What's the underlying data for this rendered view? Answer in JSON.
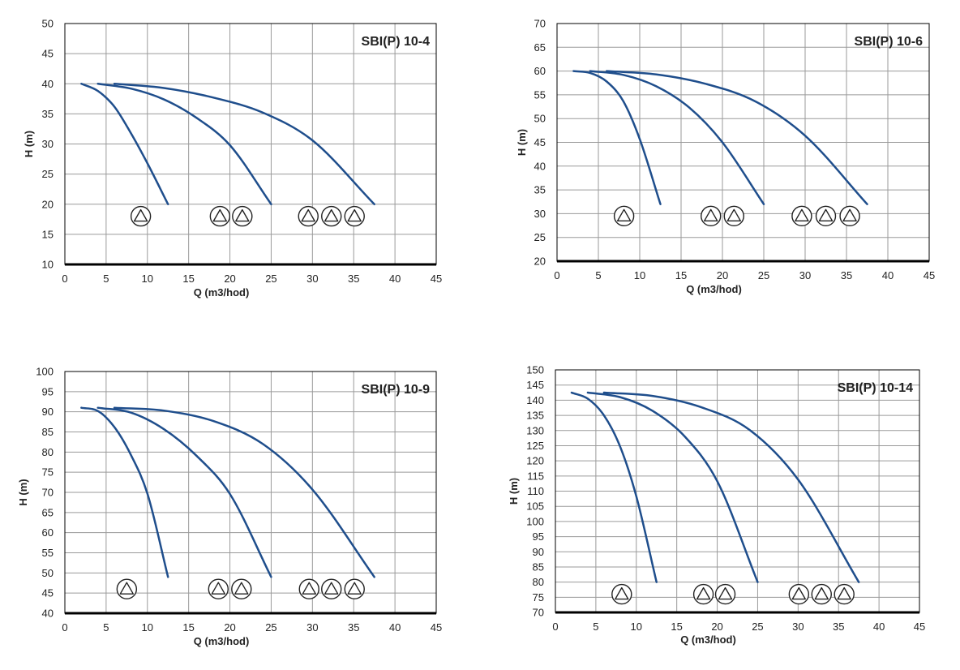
{
  "colors": {
    "curve": "#1f4e8c",
    "grid": "#9a9a9a",
    "axis": "#000000"
  },
  "icon": "pump-triangle-icon",
  "chart_data": [
    {
      "type": "line",
      "title": "SBI(P) 10-4",
      "xlabel": "Q (m3/hod)",
      "ylabel": "H (m)",
      "xlim": [
        0,
        45
      ],
      "ylim": [
        10,
        50
      ],
      "xticks": [
        "0",
        "5",
        "10",
        "15",
        "20",
        "25",
        "30",
        "35",
        "40",
        "45"
      ],
      "yticks": [
        "10",
        "15",
        "20",
        "25",
        "30",
        "35",
        "40",
        "45",
        "50"
      ],
      "grid": true,
      "series": [
        {
          "pumps": 1,
          "x": [
            2,
            4,
            6,
            8,
            10,
            12.5
          ],
          "y": [
            40,
            38.8,
            36.2,
            31.8,
            26.8,
            20
          ]
        },
        {
          "pumps": 2,
          "x": [
            4,
            8,
            12,
            16,
            20,
            25
          ],
          "y": [
            40,
            39.2,
            37.4,
            34.3,
            29.8,
            20
          ]
        },
        {
          "pumps": 3,
          "x": [
            6,
            12,
            18,
            24,
            30,
            37.5
          ],
          "y": [
            40,
            39.3,
            37.7,
            35.2,
            30.6,
            20
          ]
        }
      ],
      "pump_markers": [
        {
          "x": 9.2,
          "y": 18
        },
        {
          "x": 18.8,
          "y": 18
        },
        {
          "x": 21.5,
          "y": 18
        },
        {
          "x": 29.5,
          "y": 18
        },
        {
          "x": 32.3,
          "y": 18
        },
        {
          "x": 35.1,
          "y": 18
        }
      ]
    },
    {
      "type": "line",
      "title": "SBI(P) 10-6",
      "xlabel": "Q (m3/hod)",
      "ylabel": "H (m)",
      "xlim": [
        0,
        45
      ],
      "ylim": [
        20,
        70
      ],
      "xticks": [
        "0",
        "5",
        "10",
        "15",
        "20",
        "25",
        "30",
        "35",
        "40",
        "45"
      ],
      "yticks": [
        "20",
        "25",
        "30",
        "35",
        "40",
        "45",
        "50",
        "55",
        "60",
        "65",
        "70"
      ],
      "grid": true,
      "series": [
        {
          "pumps": 1,
          "x": [
            2,
            4,
            6,
            8,
            10,
            12.5
          ],
          "y": [
            60,
            59.6,
            57.8,
            53.7,
            45.7,
            32
          ]
        },
        {
          "pumps": 2,
          "x": [
            4,
            8,
            12,
            16,
            20,
            25
          ],
          "y": [
            60,
            59.2,
            56.8,
            52.3,
            45,
            32
          ]
        },
        {
          "pumps": 3,
          "x": [
            6,
            12,
            18,
            24,
            30,
            37.5
          ],
          "y": [
            60,
            59.3,
            57.3,
            53.6,
            46.4,
            32
          ]
        }
      ],
      "pump_markers": [
        {
          "x": 8.1,
          "y": 29.5
        },
        {
          "x": 18.6,
          "y": 29.5
        },
        {
          "x": 21.4,
          "y": 29.5
        },
        {
          "x": 29.6,
          "y": 29.5
        },
        {
          "x": 32.5,
          "y": 29.5
        },
        {
          "x": 35.4,
          "y": 29.5
        }
      ]
    },
    {
      "type": "line",
      "title": "SBI(P) 10-9",
      "xlabel": "Q (m3/hod)",
      "ylabel": "H (m)",
      "xlim": [
        0,
        45
      ],
      "ylim": [
        40,
        100
      ],
      "xticks": [
        "0",
        "5",
        "10",
        "15",
        "20",
        "25",
        "30",
        "35",
        "40",
        "45"
      ],
      "yticks": [
        "40",
        "45",
        "50",
        "55",
        "60",
        "65",
        "70",
        "75",
        "80",
        "85",
        "90",
        "95",
        "100"
      ],
      "grid": true,
      "series": [
        {
          "pumps": 1,
          "x": [
            2,
            4,
            6,
            8,
            10,
            12.5
          ],
          "y": [
            91,
            90.2,
            86.2,
            79.3,
            69.7,
            49
          ]
        },
        {
          "pumps": 2,
          "x": [
            4,
            8,
            12,
            16,
            20,
            25
          ],
          "y": [
            91,
            89.8,
            85.7,
            79,
            69.6,
            49
          ]
        },
        {
          "pumps": 3,
          "x": [
            6,
            12,
            18,
            24,
            30,
            37.5
          ],
          "y": [
            91,
            90.3,
            87.7,
            82,
            70.7,
            49
          ]
        }
      ],
      "pump_markers": [
        {
          "x": 7.5,
          "y": 46
        },
        {
          "x": 18.6,
          "y": 46
        },
        {
          "x": 21.4,
          "y": 46
        },
        {
          "x": 29.6,
          "y": 46
        },
        {
          "x": 32.3,
          "y": 46
        },
        {
          "x": 35.1,
          "y": 46
        }
      ]
    },
    {
      "type": "line",
      "title": "SBI(P) 10-14",
      "xlabel": "Q (m3/hod)",
      "ylabel": "H (m)",
      "xlim": [
        0,
        45
      ],
      "ylim": [
        70,
        150
      ],
      "xticks": [
        "0",
        "5",
        "10",
        "15",
        "20",
        "25",
        "30",
        "35",
        "40",
        "45"
      ],
      "yticks": [
        "70",
        "75",
        "80",
        "85",
        "90",
        "95",
        "100",
        "105",
        "110",
        "115",
        "120",
        "125",
        "130",
        "135",
        "140",
        "145",
        "150"
      ],
      "grid": true,
      "series": [
        {
          "pumps": 1,
          "x": [
            2,
            4,
            6,
            8,
            10,
            12.5
          ],
          "y": [
            142.5,
            140.5,
            135,
            124.7,
            108.3,
            80
          ]
        },
        {
          "pumps": 2,
          "x": [
            4,
            8,
            12,
            16,
            20,
            25
          ],
          "y": [
            142.5,
            141,
            136.5,
            128,
            113.3,
            80
          ]
        },
        {
          "pumps": 3,
          "x": [
            6,
            12,
            18,
            24,
            30,
            37.5
          ],
          "y": [
            142.5,
            141.4,
            137.7,
            130.2,
            113.8,
            80
          ]
        }
      ],
      "pump_markers": [
        {
          "x": 8.2,
          "y": 76
        },
        {
          "x": 18.3,
          "y": 76
        },
        {
          "x": 21,
          "y": 76
        },
        {
          "x": 30.1,
          "y": 76
        },
        {
          "x": 32.9,
          "y": 76
        },
        {
          "x": 35.7,
          "y": 76
        }
      ]
    }
  ]
}
